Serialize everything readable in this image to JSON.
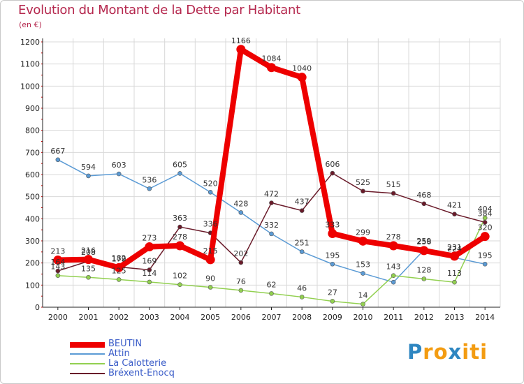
{
  "chart_data": {
    "type": "line",
    "title": "Evolution du Montant de la Dette par Habitant",
    "subtitle": "(en €)",
    "x": [
      "2000",
      "2001",
      "2002",
      "2003",
      "2004",
      "2005",
      "2006",
      "2007",
      "2008",
      "2009",
      "2010",
      "2011",
      "2012",
      "2013",
      "2014"
    ],
    "ylim": [
      0,
      1200
    ],
    "yticks": [
      "0",
      "100",
      "200",
      "300",
      "400",
      "500",
      "600",
      "700",
      "800",
      "900",
      "1000",
      "1100",
      "1200"
    ],
    "grid": true,
    "legend_position": "bottom-left",
    "series": [
      {
        "name": "BEUTIN",
        "color": "#ee0000",
        "values": [
          213,
          216,
          179,
          273,
          278,
          215,
          1166,
          1084,
          1040,
          333,
          299,
          278,
          256,
          231,
          320
        ],
        "labels": [
          "213",
          "216",
          "179",
          "273",
          "278",
          "215",
          "1166",
          "1084",
          "1040",
          "333",
          "299",
          "278",
          "256",
          "231",
          "320"
        ]
      },
      {
        "name": "Attin",
        "color": "#5b9bd5",
        "values": [
          667,
          594,
          603,
          536,
          605,
          520,
          428,
          332,
          251,
          195,
          153,
          113,
          259,
          224,
          195
        ],
        "labels": [
          "667",
          "594",
          "603",
          "536",
          "605",
          "520",
          "428",
          "332",
          "251",
          "195",
          "153",
          "",
          "259",
          "224",
          "195"
        ]
      },
      {
        "name": "La Calotterie",
        "color": "#92d050",
        "values": [
          143,
          135,
          125,
          114,
          102,
          90,
          76,
          62,
          46,
          27,
          14,
          143,
          128,
          113,
          404
        ],
        "labels": [
          "143",
          "135",
          "125",
          "114",
          "102",
          "90",
          "76",
          "62",
          "46",
          "27",
          "14",
          "143",
          "128",
          "113",
          "404"
        ]
      },
      {
        "name": "Bréxent-Enocq",
        "color": "#6a1b2a",
        "values": [
          164,
          208,
          182,
          169,
          363,
          336,
          202,
          472,
          437,
          606,
          525,
          515,
          468,
          421,
          384
        ],
        "labels": [
          "164",
          "208",
          "182",
          "169",
          "363",
          "336",
          "202",
          "472",
          "437",
          "606",
          "525",
          "515",
          "468",
          "421",
          "384"
        ]
      }
    ]
  },
  "legend": {
    "items": [
      {
        "label": "BEUTIN",
        "color": "#ee0000",
        "stroke": 8
      },
      {
        "label": "Attin",
        "color": "#5b9bd5",
        "stroke": 2
      },
      {
        "label": "La Calotterie",
        "color": "#92d050",
        "stroke": 2
      },
      {
        "label": "Bréxent-Enocq",
        "color": "#6a1b2a",
        "stroke": 2
      }
    ]
  },
  "logo": {
    "letters": [
      "P",
      "r",
      "o",
      "x",
      "i",
      "t",
      "i"
    ],
    "colors": [
      "#2e86c1",
      "#f39c12",
      "#f39c12",
      "#2e86c1",
      "#f39c12",
      "#f39c12",
      "#f39c12"
    ]
  }
}
